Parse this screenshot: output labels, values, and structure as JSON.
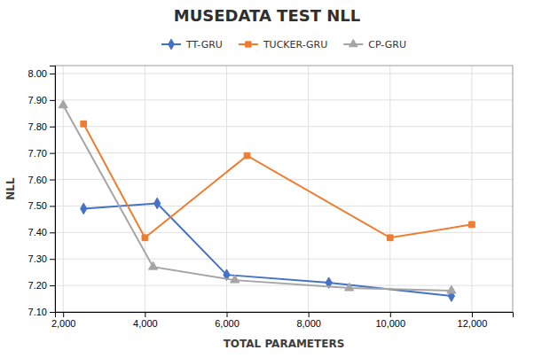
{
  "chart_data": {
    "type": "line",
    "title": "MUSEDATA TEST NLL",
    "xlabel": "TOTAL PARAMETERS",
    "ylabel": "NLL",
    "series": [
      {
        "name": "TT-GRU",
        "color": "#4472C4",
        "marker": "diamond",
        "x": [
          2500,
          4300,
          6000,
          8500,
          11500
        ],
        "values": [
          7.49,
          7.51,
          7.24,
          7.21,
          7.16
        ]
      },
      {
        "name": "TUCKER-GRU",
        "color": "#ED7D31",
        "marker": "square",
        "x": [
          2500,
          4000,
          6500,
          10000,
          12000
        ],
        "values": [
          7.81,
          7.38,
          7.69,
          7.38,
          7.43
        ]
      },
      {
        "name": "CP-GRU",
        "color": "#A5A5A5",
        "marker": "triangle",
        "x": [
          2000,
          4200,
          6200,
          9000,
          11500
        ],
        "values": [
          7.88,
          7.27,
          7.22,
          7.19,
          7.18
        ]
      }
    ],
    "xlim": [
      1800,
      13000
    ],
    "ylim": [
      7.1,
      8.03
    ],
    "xticks": [
      {
        "value": 2000,
        "label": "2,000"
      },
      {
        "value": 4000,
        "label": "4,000"
      },
      {
        "value": 6000,
        "label": "6,000"
      },
      {
        "value": 8000,
        "label": "8,000"
      },
      {
        "value": 10000,
        "label": "10,000"
      },
      {
        "value": 12000,
        "label": "12,000"
      }
    ],
    "yticks": [
      {
        "value": 7.1,
        "label": "7.10"
      },
      {
        "value": 7.2,
        "label": "7.20"
      },
      {
        "value": 7.3,
        "label": "7.30"
      },
      {
        "value": 7.4,
        "label": "7.40"
      },
      {
        "value": 7.5,
        "label": "7.50"
      },
      {
        "value": 7.6,
        "label": "7.60"
      },
      {
        "value": 7.7,
        "label": "7.70"
      },
      {
        "value": 7.8,
        "label": "7.80"
      },
      {
        "value": 7.9,
        "label": "7.90"
      },
      {
        "value": 8.0,
        "label": "8.00"
      }
    ],
    "grid": true,
    "legend": "top"
  }
}
